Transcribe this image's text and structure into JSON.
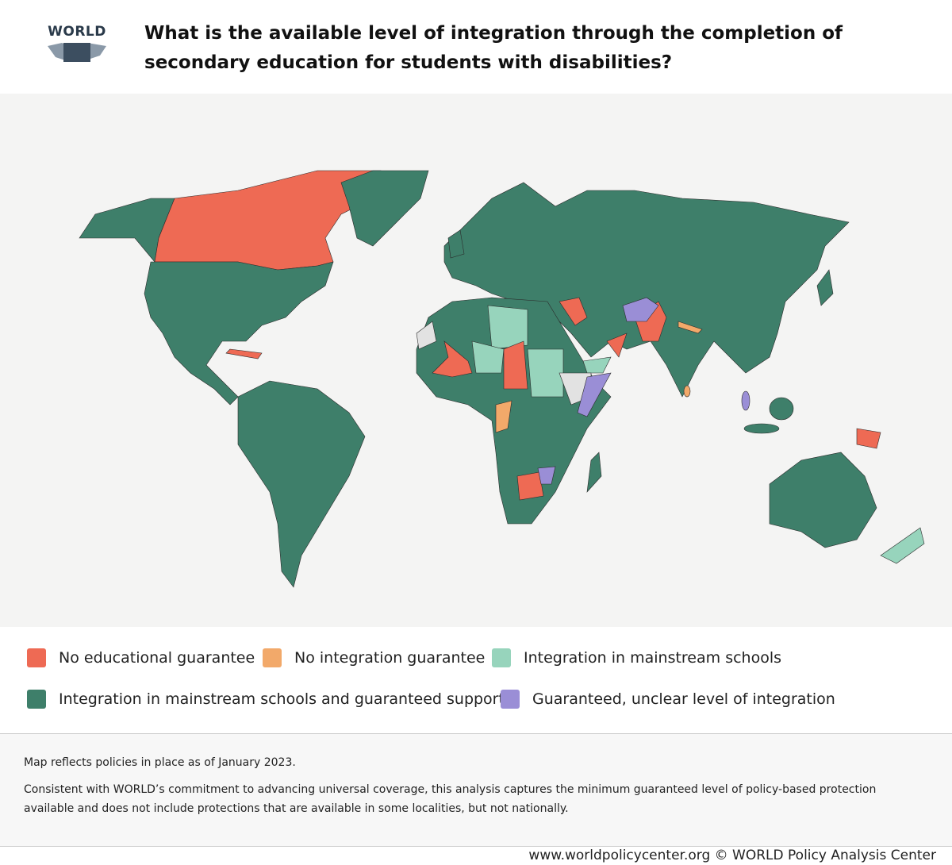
{
  "header": {
    "logo": "WORLD",
    "title": "What is the available level of integration through the completion of secondary education for students with disabilities?"
  },
  "legend": {
    "items": [
      {
        "label": "No educational guarantee",
        "color": "#ee6a54"
      },
      {
        "label": "No integration guarantee",
        "color": "#f2a96a"
      },
      {
        "label": "Integration in mainstream schools",
        "color": "#97d4bc"
      },
      {
        "label": "Integration in mainstream schools and guaranteed support",
        "color": "#3e7f6a"
      },
      {
        "label": "Guaranteed, unclear level of integration",
        "color": "#9a8ed6"
      }
    ]
  },
  "notes": [
    "Map reflects policies in place as of January 2023.",
    "Consistent with WORLD’s commitment to advancing universal coverage, this analysis captures the minimum guaranteed level of policy-based protection available and does not include protections that are available in some localities, but not nationally."
  ],
  "footer": "www.worldpolicycenter.org © WORLD Policy Analysis Center"
}
